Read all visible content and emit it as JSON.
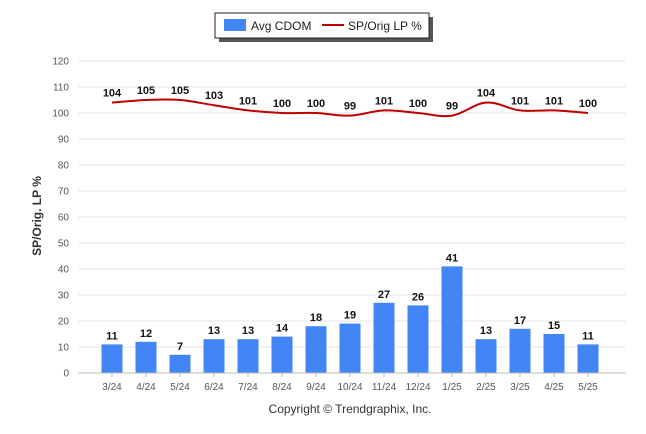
{
  "chart_data": {
    "type": "bar",
    "categories": [
      "3/24",
      "4/24",
      "5/24",
      "6/24",
      "7/24",
      "8/24",
      "9/24",
      "10/24",
      "11/24",
      "12/24",
      "1/25",
      "2/25",
      "3/25",
      "4/25",
      "5/25"
    ],
    "series": [
      {
        "name": "Avg CDOM",
        "type": "bar",
        "color": "#4285f4",
        "values": [
          11,
          12,
          7,
          13,
          13,
          14,
          18,
          19,
          27,
          26,
          41,
          13,
          17,
          15,
          11
        ]
      },
      {
        "name": "SP/Orig LP %",
        "type": "line",
        "color": "#c00000",
        "values": [
          104,
          105,
          105,
          103,
          101,
          100,
          100,
          99,
          101,
          100,
          99,
          104,
          101,
          101,
          100
        ]
      }
    ],
    "ylabel": "SP/Orig. LP %",
    "ylim": [
      0,
      120
    ],
    "yticks": [
      0,
      10,
      20,
      30,
      40,
      50,
      60,
      70,
      80,
      90,
      100,
      110,
      120
    ],
    "grid": true,
    "legend_position": "top-center"
  },
  "footer": {
    "copyright": "Copyright © Trendgraphix, Inc."
  }
}
